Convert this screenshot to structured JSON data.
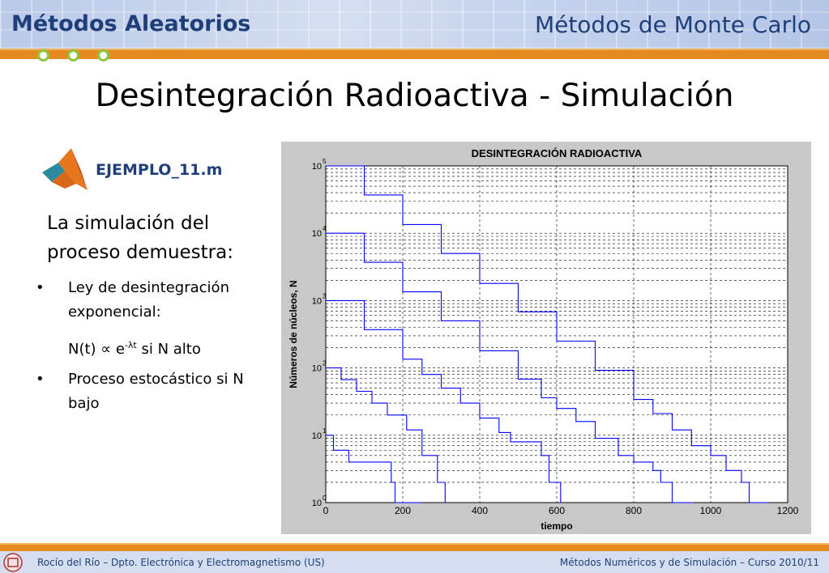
{
  "header": {
    "left_title": "Métodos Aleatorios",
    "right_title": "Métodos de Monte Carlo"
  },
  "slide": {
    "title": "Desintegración Radioactiva - Simulación",
    "file_link": "EJEMPLO_11.m",
    "intro": "La simulación del proceso demuestra:",
    "bullets": [
      {
        "marker": "•",
        "line1": "Ley de desintegración exponencial:"
      },
      {
        "marker": "•",
        "line1": "Proceso estocástico si N bajo"
      }
    ],
    "formula": {
      "lhs": "N(t) ",
      "prop": "∝",
      "base": " e",
      "exponent": "-λt",
      "rest": " si N alto"
    }
  },
  "chart_data": {
    "type": "line",
    "title": "DESINTEGRACIÓN RADIOACTIVA",
    "xlabel": "tiempo",
    "ylabel": "Números de núcleos, N",
    "xlim": [
      0,
      1200
    ],
    "ylim": [
      1,
      100000
    ],
    "yscale": "log",
    "grid": true,
    "x_ticks": [
      "0",
      "200",
      "400",
      "600",
      "800",
      "1000",
      "1200"
    ],
    "y_tick_base": "10",
    "y_tick_exponents": [
      "0",
      "1",
      "2",
      "3",
      "4",
      "5"
    ],
    "decay_rate": 0.01,
    "series": [
      {
        "N0": 100000,
        "x": [
          0,
          100,
          200,
          300,
          400,
          500,
          600,
          700,
          800,
          850,
          900,
          950,
          1000,
          1040,
          1080,
          1100,
          1150
        ],
        "y": [
          100000,
          37000,
          13500,
          5000,
          1800,
          680,
          250,
          92,
          34,
          21,
          12,
          7,
          5,
          3,
          2,
          1,
          0
        ]
      },
      {
        "N0": 10000,
        "x": [
          0,
          100,
          200,
          300,
          400,
          500,
          560,
          600,
          650,
          700,
          760,
          800,
          850,
          870,
          900,
          955
        ],
        "y": [
          10000,
          3700,
          1350,
          500,
          180,
          68,
          36,
          25,
          16,
          9,
          5,
          4,
          3,
          2,
          1,
          0
        ]
      },
      {
        "N0": 1000,
        "x": [
          0,
          100,
          200,
          250,
          300,
          350,
          400,
          450,
          480,
          560,
          580,
          610
        ],
        "y": [
          1000,
          370,
          135,
          80,
          50,
          30,
          18,
          11,
          8,
          5,
          2,
          0
        ]
      },
      {
        "N0": 100,
        "x": [
          0,
          40,
          80,
          120,
          160,
          210,
          250,
          290,
          310
        ],
        "y": [
          100,
          67,
          45,
          30,
          20,
          12,
          5,
          2,
          0
        ]
      },
      {
        "N0": 10,
        "x": [
          0,
          20,
          60,
          170,
          180,
          250
        ],
        "y": [
          10,
          6,
          4,
          2,
          1,
          0
        ]
      }
    ]
  },
  "footer": {
    "left": "Rocío del Río – Dpto. Electrónica y Electromagnetismo (US)",
    "right": "Métodos Numéricos y de Simulación – Curso 2010/11"
  },
  "colors": {
    "header_text": "#1f3f7a",
    "accent_bar": "#e58a1e",
    "dot": "#8cc63f",
    "series": "#0000ff"
  }
}
